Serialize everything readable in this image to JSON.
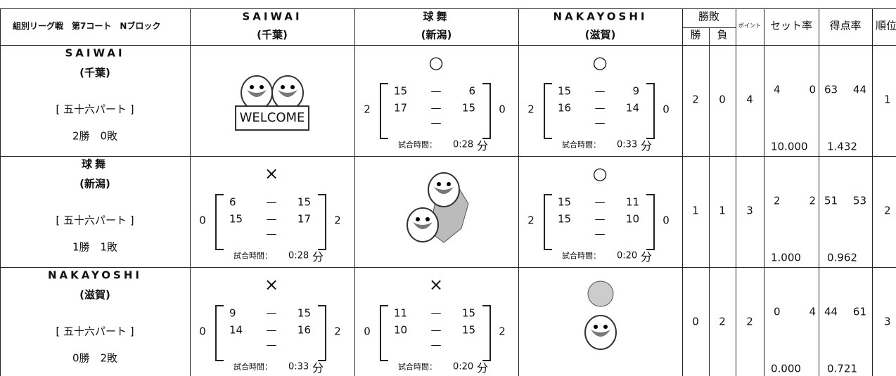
{
  "header": {
    "title": "組別リーグ戦　第7コート　Nブロック",
    "teams": [
      {
        "name": "SAIWAI",
        "pref": "(千葉)"
      },
      {
        "name": "球舞",
        "pref": "(新潟)"
      },
      {
        "name": "NAKAYOSHI",
        "pref": "(滋賀)"
      }
    ],
    "win_loss": "勝敗",
    "win": "勝",
    "loss": "負",
    "points": "ポイント",
    "set_rate": "セット率",
    "score_rate": "得点率",
    "rank": "順位"
  },
  "rows": [
    {
      "name": "SAIWAI",
      "pref": "(千葉)",
      "part": "[ 五十六パート ]",
      "record": "2勝　0敗",
      "image_text": "WELCOME",
      "cells": [
        null,
        {
          "mark": "○",
          "left": "2",
          "right": "0",
          "sets": [
            {
              "a": "15",
              "dash": "—",
              "b": "6"
            },
            {
              "a": "17",
              "dash": "—",
              "b": "15"
            },
            {
              "dash": "—"
            }
          ],
          "time_label": "試合時間：",
          "time": "0:28",
          "unit": "分"
        },
        {
          "mark": "○",
          "left": "2",
          "right": "0",
          "sets": [
            {
              "a": "15",
              "dash": "—",
              "b": "9"
            },
            {
              "a": "16",
              "dash": "—",
              "b": "14"
            },
            {
              "dash": "—"
            }
          ],
          "time_label": "試合時間：",
          "time": "0:33",
          "unit": "分"
        }
      ],
      "wins": "2",
      "losses": "0",
      "points": "4",
      "sets": [
        "4",
        "0"
      ],
      "set_rate": "10.000",
      "scores": [
        "63",
        "44"
      ],
      "score_rate": "1.432",
      "rank": "1"
    },
    {
      "name": "球舞",
      "pref": "(新潟)",
      "part": "[ 五十六パート ]",
      "record": "1勝　1敗",
      "cells": [
        {
          "mark": "×",
          "left": "0",
          "right": "2",
          "sets": [
            {
              "a": "6",
              "dash": "—",
              "b": "15"
            },
            {
              "a": "15",
              "dash": "—",
              "b": "17"
            },
            {
              "dash": "—"
            }
          ],
          "time_label": "試合時間：",
          "time": "0:28",
          "unit": "分"
        },
        null,
        {
          "mark": "○",
          "left": "2",
          "right": "0",
          "sets": [
            {
              "a": "15",
              "dash": "—",
              "b": "11"
            },
            {
              "a": "15",
              "dash": "—",
              "b": "10"
            },
            {
              "dash": "—"
            }
          ],
          "time_label": "試合時間：",
          "time": "0:20",
          "unit": "分"
        }
      ],
      "wins": "1",
      "losses": "1",
      "points": "3",
      "sets": [
        "2",
        "2"
      ],
      "set_rate": "1.000",
      "scores": [
        "51",
        "53"
      ],
      "score_rate": "0.962",
      "rank": "2"
    },
    {
      "name": "NAKAYOSHI",
      "pref": "(滋賀)",
      "part": "[ 五十六パート ]",
      "record": "0勝　2敗",
      "cells": [
        {
          "mark": "×",
          "left": "0",
          "right": "2",
          "sets": [
            {
              "a": "9",
              "dash": "—",
              "b": "15"
            },
            {
              "a": "14",
              "dash": "—",
              "b": "16"
            },
            {
              "dash": "—"
            }
          ],
          "time_label": "試合時間：",
          "time": "0:33",
          "unit": "分"
        },
        {
          "mark": "×",
          "left": "0",
          "right": "2",
          "sets": [
            {
              "a": "11",
              "dash": "—",
              "b": "15"
            },
            {
              "a": "10",
              "dash": "—",
              "b": "15"
            },
            {
              "dash": "—"
            }
          ],
          "time_label": "試合時間：",
          "time": "0:20",
          "unit": "分"
        },
        null
      ],
      "wins": "0",
      "losses": "2",
      "points": "2",
      "sets": [
        "0",
        "4"
      ],
      "set_rate": "0.000",
      "scores": [
        "44",
        "61"
      ],
      "score_rate": "0.721",
      "rank": "3"
    }
  ]
}
